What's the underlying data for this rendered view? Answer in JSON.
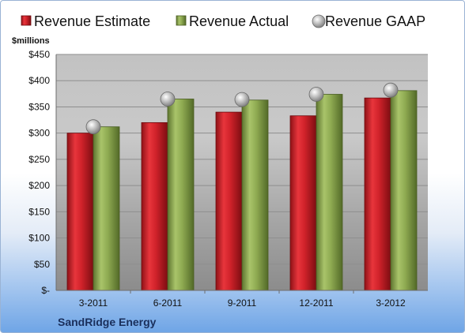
{
  "chart_data": {
    "type": "bar",
    "title": "",
    "unit_label": "$millions",
    "company": "SandRidge Energy",
    "categories": [
      "3-2011",
      "6-2011",
      "9-2011",
      "12-2011",
      "3-2012"
    ],
    "series": [
      {
        "name": "Revenue Estimate",
        "kind": "bar",
        "color": "#cc1f27",
        "values": [
          300,
          320,
          340,
          333,
          367
        ]
      },
      {
        "name": "Revenue Actual",
        "kind": "bar",
        "color": "#8aa64a",
        "values": [
          312,
          365,
          363,
          374,
          381
        ]
      },
      {
        "name": "Revenue GAAP",
        "kind": "marker",
        "color": "#b9b9b9",
        "values": [
          312,
          365,
          364,
          374,
          382
        ]
      }
    ],
    "ylim": [
      0,
      450
    ],
    "yticks": [
      0,
      50,
      100,
      150,
      200,
      250,
      300,
      350,
      400,
      450
    ],
    "ytick_labels": [
      "$-",
      "$50",
      "$100",
      "$150",
      "$200",
      "$250",
      "$300",
      "$350",
      "$400",
      "$450"
    ],
    "grid": true,
    "legend_position": "top"
  }
}
